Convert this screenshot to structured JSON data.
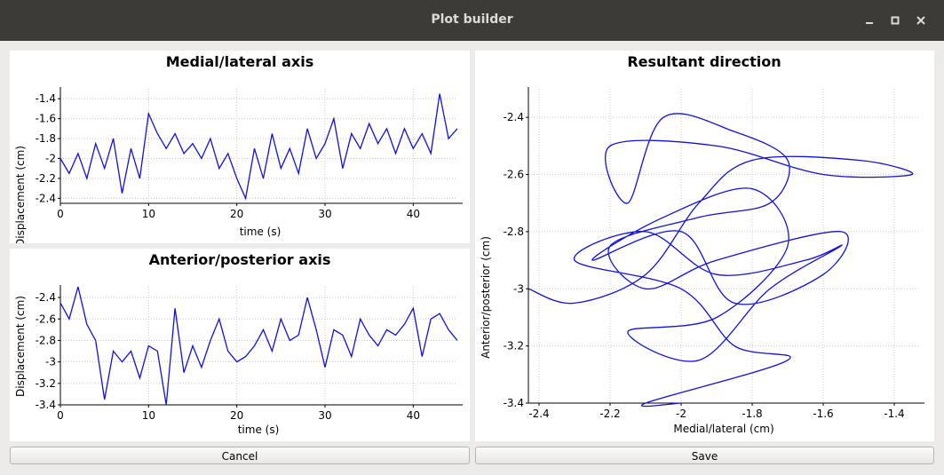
{
  "window": {
    "title": "Plot builder"
  },
  "buttons": {
    "cancel": "Cancel",
    "save": "Save"
  },
  "colors": {
    "line": "#1010e0",
    "grid": "#c8c8c8"
  },
  "chart_data": [
    {
      "type": "line",
      "title": "Medial/lateral axis",
      "xlabel": "time (s)",
      "ylabel": "Displacement (cm)",
      "xlim": [
        0,
        45
      ],
      "ylim": [
        -2.45,
        -1.3
      ],
      "xticks": [
        0,
        10,
        20,
        30,
        40
      ],
      "yticks": [
        -2.4,
        -2.2,
        -2,
        -1.8,
        -1.6,
        -1.4
      ],
      "ytick_labels": [
        "-2.4",
        "-2.2",
        "-2",
        "-1.8",
        "-1.6",
        "-1.4"
      ],
      "grid": true,
      "x": [
        0,
        1,
        2,
        3,
        4,
        5,
        6,
        7,
        8,
        9,
        10,
        11,
        12,
        13,
        14,
        15,
        16,
        17,
        18,
        19,
        20,
        21,
        22,
        23,
        24,
        25,
        26,
        27,
        28,
        29,
        30,
        31,
        32,
        33,
        34,
        35,
        36,
        37,
        38,
        39,
        40,
        41,
        42,
        43,
        44,
        45
      ],
      "y": [
        -2.0,
        -2.15,
        -1.95,
        -2.2,
        -1.85,
        -2.1,
        -1.8,
        -2.35,
        -1.9,
        -2.2,
        -1.55,
        -1.75,
        -1.9,
        -1.75,
        -1.95,
        -1.85,
        -2.0,
        -1.8,
        -2.1,
        -1.95,
        -2.2,
        -2.4,
        -1.9,
        -2.2,
        -1.75,
        -2.1,
        -1.9,
        -2.15,
        -1.7,
        -2.0,
        -1.85,
        -1.6,
        -2.1,
        -1.75,
        -1.9,
        -1.65,
        -1.85,
        -1.7,
        -1.95,
        -1.7,
        -1.9,
        -1.75,
        -1.95,
        -1.35,
        -1.8,
        -1.7
      ]
    },
    {
      "type": "line",
      "title": "Anterior/posterior axis",
      "xlabel": "time (s)",
      "ylabel": "Displacement (cm)",
      "xlim": [
        0,
        45
      ],
      "ylim": [
        -3.4,
        -2.3
      ],
      "xticks": [
        0,
        10,
        20,
        30,
        40
      ],
      "yticks": [
        -3.4,
        -3.2,
        -3.0,
        -2.8,
        -2.6,
        -2.4
      ],
      "ytick_labels": [
        "-3.4",
        "-3.2",
        "-3",
        "-2.8",
        "-2.6",
        "-2.4"
      ],
      "grid": true,
      "x": [
        0,
        1,
        2,
        3,
        4,
        5,
        6,
        7,
        8,
        9,
        10,
        11,
        12,
        13,
        14,
        15,
        16,
        17,
        18,
        19,
        20,
        21,
        22,
        23,
        24,
        25,
        26,
        27,
        28,
        29,
        30,
        31,
        32,
        33,
        34,
        35,
        36,
        37,
        38,
        39,
        40,
        41,
        42,
        43,
        44,
        45
      ],
      "y": [
        -2.45,
        -2.6,
        -2.3,
        -2.65,
        -2.8,
        -3.35,
        -2.9,
        -3.0,
        -2.9,
        -3.15,
        -2.85,
        -2.9,
        -3.4,
        -2.5,
        -3.1,
        -2.85,
        -3.05,
        -2.8,
        -2.6,
        -2.9,
        -3.0,
        -2.95,
        -2.85,
        -2.7,
        -2.9,
        -2.6,
        -2.8,
        -2.75,
        -2.4,
        -2.7,
        -3.05,
        -2.7,
        -2.75,
        -2.95,
        -2.6,
        -2.75,
        -2.85,
        -2.7,
        -2.75,
        -2.65,
        -2.5,
        -2.95,
        -2.6,
        -2.55,
        -2.7,
        -2.8
      ]
    },
    {
      "type": "line",
      "title": "Resultant direction",
      "xlabel": "Medial/lateral (cm)",
      "ylabel": "Anterior/posterior (cm)",
      "xlim": [
        -2.43,
        -1.33
      ],
      "ylim": [
        -3.4,
        -2.3
      ],
      "xticks": [
        -2.4,
        -2.2,
        -2.0,
        -1.8,
        -1.6,
        -1.4
      ],
      "xtick_labels": [
        "-2.4",
        "-2.2",
        "-2",
        "-1.8",
        "-1.6",
        "-1.4"
      ],
      "yticks": [
        -3.4,
        -3.2,
        -3.0,
        -2.8,
        -2.6,
        -2.4
      ],
      "ytick_labels": [
        "-3.4",
        "-3.2",
        "-3",
        "-2.8",
        "-2.6",
        "-2.4"
      ],
      "grid": true,
      "x": [
        -2.43,
        -2.3,
        -2.1,
        -1.95,
        -1.8,
        -1.5,
        -1.35,
        -1.6,
        -1.9,
        -2.2,
        -2.15,
        -2.05,
        -1.85,
        -1.7,
        -1.75,
        -1.95,
        -2.2,
        -2.1,
        -1.9,
        -1.55,
        -1.6,
        -1.85,
        -2.0,
        -2.25,
        -2.05,
        -1.8,
        -1.7,
        -1.9,
        -2.15,
        -1.95,
        -1.75,
        -1.55,
        -1.65,
        -1.9,
        -2.1,
        -2.3,
        -2.0,
        -1.85,
        -1.7,
        -2.1,
        -2.0
      ],
      "y": [
        -3.0,
        -3.05,
        -2.95,
        -2.7,
        -2.55,
        -2.55,
        -2.6,
        -2.6,
        -2.5,
        -2.5,
        -2.7,
        -2.4,
        -2.45,
        -2.55,
        -2.7,
        -2.75,
        -2.85,
        -3.0,
        -2.9,
        -2.8,
        -2.95,
        -3.05,
        -2.8,
        -2.9,
        -2.75,
        -2.65,
        -2.85,
        -3.1,
        -3.15,
        -3.25,
        -3.0,
        -2.85,
        -2.9,
        -2.95,
        -2.8,
        -2.9,
        -3.0,
        -3.2,
        -3.25,
        -3.4,
        -3.4
      ]
    }
  ]
}
